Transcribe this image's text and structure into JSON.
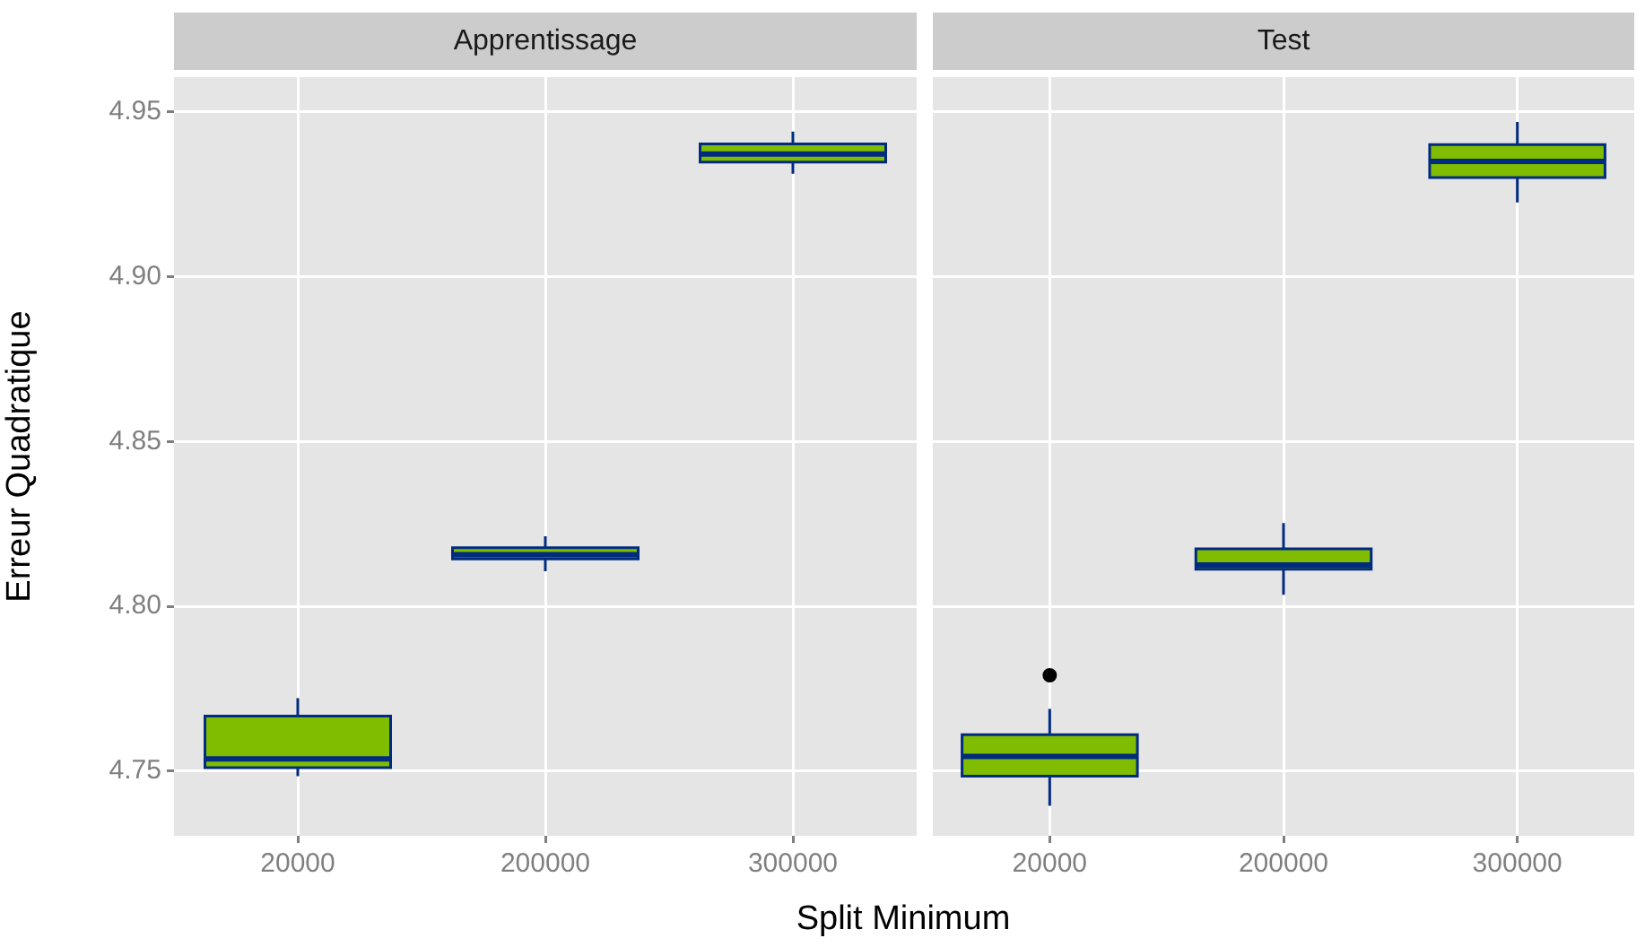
{
  "chart_data": [
    {
      "type": "box",
      "title": "Apprentissage",
      "xlabel": "Split Minimum",
      "ylabel": "Erreur Quadratique",
      "categories": [
        "20000",
        "200000",
        "300000"
      ],
      "ylim": [
        4.7304,
        4.9606
      ],
      "yticks": [
        4.75,
        {
          "value": 4.8,
          "label": "4.80"
        },
        4.85,
        {
          "value": 4.9,
          "label": "4.90"
        },
        4.95
      ],
      "grid": true,
      "legend": false,
      "series": [
        {
          "color": "#80bc00",
          "boxes": [
            {
              "low": 4.7485,
              "q1": 4.7511,
              "median": 4.7537,
              "q3": 4.7667,
              "high": 4.7722
            },
            {
              "low": 4.8107,
              "q1": 4.8144,
              "median": 4.8157,
              "q3": 4.8178,
              "high": 4.8213
            },
            {
              "low": 4.9313,
              "q1": 4.9348,
              "median": 4.9373,
              "q3": 4.9403,
              "high": 4.9441
            }
          ]
        }
      ]
    },
    {
      "type": "box",
      "title": "Test",
      "categories": [
        "20000",
        "200000",
        "300000"
      ],
      "ylim": [
        4.7304,
        4.9606
      ],
      "yticks": [
        4.75,
        4.8,
        4.85,
        4.9,
        4.95
      ],
      "grid": true,
      "legend": false,
      "tick_labels": "x",
      "series": [
        {
          "color": "#80bc00",
          "boxes": [
            {
              "low": 4.7395,
              "q1": 4.7485,
              "median": 4.7545,
              "q3": 4.7611,
              "high": 4.7689,
              "outliers": [
                4.7791
              ]
            },
            {
              "low": 4.8035,
              "q1": 4.8113,
              "median": 4.8126,
              "q3": 4.8175,
              "high": 4.8253
            },
            {
              "low": 4.9226,
              "q1": 4.9301,
              "median": 4.935,
              "q3": 4.9401,
              "high": 4.947
            }
          ]
        }
      ]
    }
  ]
}
